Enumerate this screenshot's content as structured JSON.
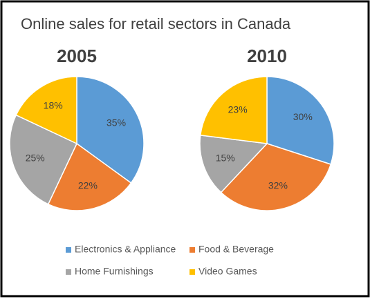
{
  "title": "Online sales for retail sectors in Canada",
  "legend": {
    "labels": [
      "Electronics & Appliance",
      "Food & Beverage",
      "Home Furnishings",
      "Video Games"
    ],
    "colors": [
      "#5b9bd5",
      "#ed7d31",
      "#a5a5a5",
      "#ffc000"
    ]
  },
  "chart_data": [
    {
      "type": "pie",
      "title": "2005",
      "values": [
        35,
        22,
        25,
        18
      ],
      "value_labels": [
        "35%",
        "22%",
        "25%",
        "18%"
      ]
    },
    {
      "type": "pie",
      "title": "2010",
      "values": [
        30,
        32,
        15,
        23
      ],
      "value_labels": [
        "30%",
        "32%",
        "15%",
        "23%"
      ]
    }
  ]
}
